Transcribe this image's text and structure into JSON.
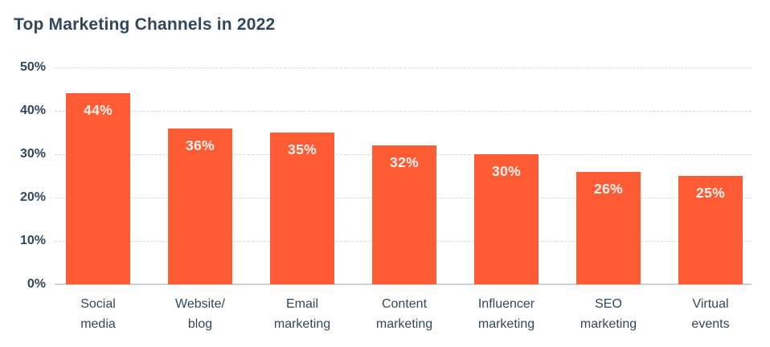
{
  "chart_data": {
    "type": "bar",
    "title": "Top Marketing Channels in 2022",
    "categories": [
      "Social media",
      "Website/blog",
      "Email marketing",
      "Content marketing",
      "Influencer marketing",
      "SEO marketing",
      "Virtual events"
    ],
    "category_display_lines": [
      "Social\nmedia",
      "Website/\nblog",
      "Email\nmarketing",
      "Content\nmarketing",
      "Influencer\nmarketing",
      "SEO\nmarketing",
      "Virtual\nevents"
    ],
    "values": [
      44,
      36,
      35,
      32,
      30,
      26,
      25
    ],
    "value_labels": [
      "44%",
      "36%",
      "35%",
      "32%",
      "30%",
      "26%",
      "25%"
    ],
    "xlabel": "",
    "ylabel": "",
    "ylim": [
      0,
      50
    ],
    "yticks": [
      0,
      10,
      20,
      30,
      40,
      50
    ],
    "ytick_labels": [
      "0%",
      "10%",
      "20%",
      "30%",
      "40%",
      "50%"
    ],
    "grid": "horizontal dashed gridlines, solid baseline at 0%",
    "legend": "none",
    "colors": {
      "bar": "#ff5c35",
      "title_text": "#33475b",
      "axis_text": "#33475b",
      "value_label_text": "#fdf3ee",
      "gridline": "#d9d9d9",
      "baseline": "#ccd1d6"
    }
  }
}
